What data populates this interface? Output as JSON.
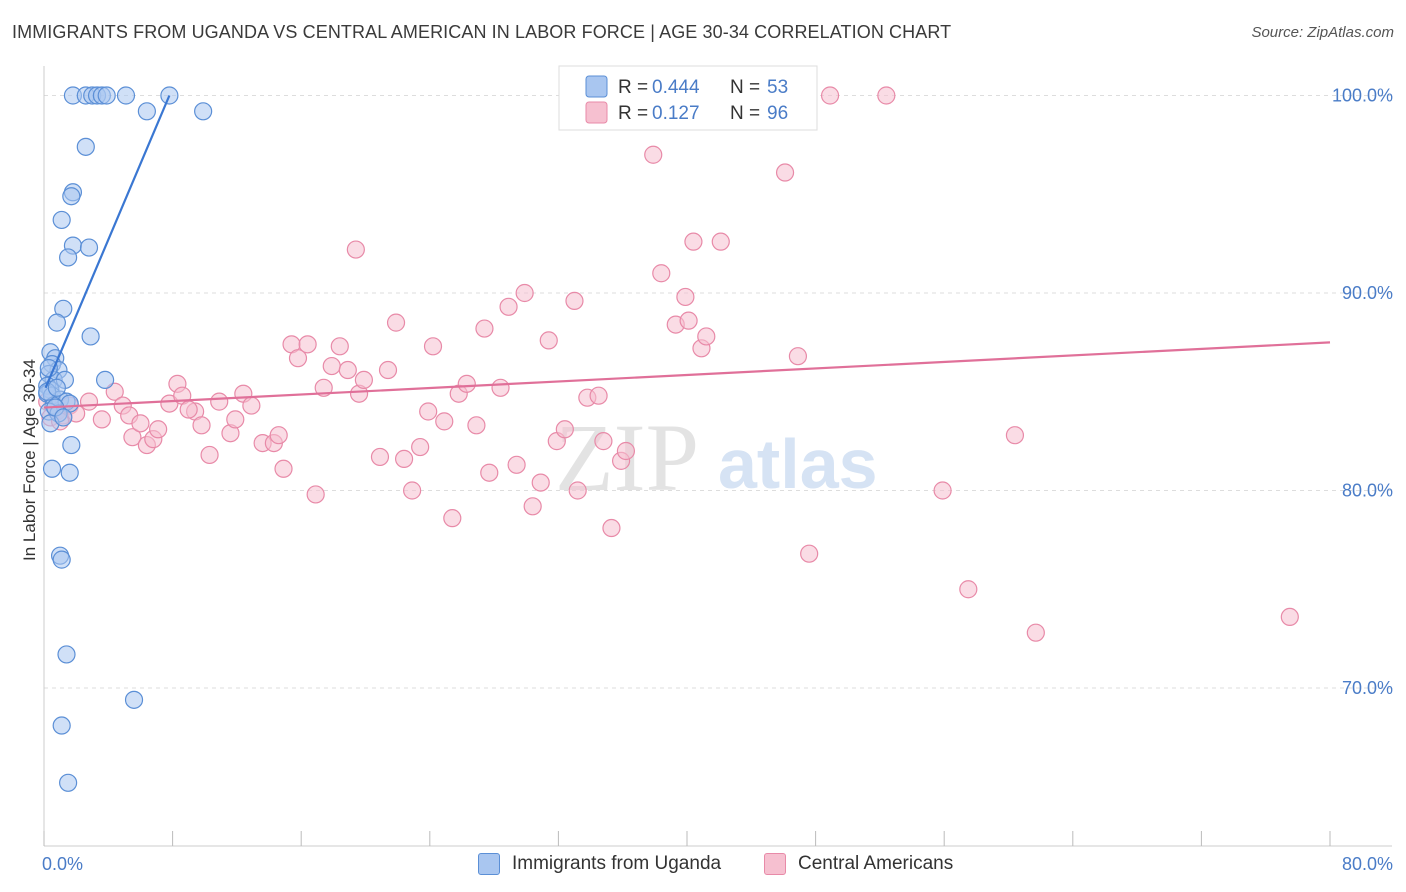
{
  "title": "IMMIGRANTS FROM UGANDA VS CENTRAL AMERICAN IN LABOR FORCE | AGE 30-34 CORRELATION CHART",
  "source": "Source: ZipAtlas.com",
  "watermark": {
    "zip": "ZIP",
    "atlas": "atlas"
  },
  "colors": {
    "blue_fill": "#a9c6f0",
    "blue_stroke": "#5b8fd6",
    "blue_line": "#3a77d2",
    "pink_fill": "#f6c0d0",
    "pink_stroke": "#e88aa8",
    "pink_line": "#e07099",
    "tick_label": "#4a7cc7",
    "grid": "#dddddd"
  },
  "chart_data": {
    "type": "scatter",
    "xlabel": "",
    "ylabel": "In Labor Force | Age 30-34",
    "xlim": [
      0,
      80
    ],
    "ylim": [
      62,
      102
    ],
    "x_tick_labels": [
      {
        "value": 0,
        "label": "0.0%"
      },
      {
        "value": 80,
        "label": "80.0%"
      }
    ],
    "y_ticks": [
      {
        "value": 70,
        "label": "70.0%"
      },
      {
        "value": 80,
        "label": "80.0%"
      },
      {
        "value": 90,
        "label": "90.0%"
      },
      {
        "value": 100,
        "label": "100.0%"
      }
    ],
    "legend": {
      "position": "top-center",
      "entries": [
        {
          "r_label": "R =",
          "r_value": "0.444",
          "n_label": "N =",
          "n_value": "53"
        },
        {
          "r_label": "R =",
          "r_value": "0.127",
          "n_label": "N =",
          "n_value": "96"
        }
      ]
    },
    "series": [
      {
        "name": "Immigrants from Uganda",
        "trend": {
          "x": [
            0.1,
            7.8
          ],
          "y": [
            85.2,
            100.0
          ]
        },
        "points": [
          [
            1.8,
            100
          ],
          [
            2.6,
            100
          ],
          [
            3.0,
            100
          ],
          [
            3.3,
            100
          ],
          [
            3.6,
            100
          ],
          [
            3.9,
            100
          ],
          [
            5.1,
            100
          ],
          [
            7.8,
            100
          ],
          [
            6.4,
            99.2
          ],
          [
            9.9,
            99.2
          ],
          [
            2.6,
            97.4
          ],
          [
            1.8,
            95.1
          ],
          [
            1.7,
            94.9
          ],
          [
            1.1,
            93.7
          ],
          [
            1.8,
            92.4
          ],
          [
            2.8,
            92.3
          ],
          [
            1.5,
            91.8
          ],
          [
            1.2,
            89.2
          ],
          [
            0.8,
            88.5
          ],
          [
            2.9,
            87.8
          ],
          [
            0.4,
            87.0
          ],
          [
            0.7,
            86.7
          ],
          [
            0.5,
            86.4
          ],
          [
            0.9,
            86.1
          ],
          [
            0.3,
            85.9
          ],
          [
            0.6,
            85.6
          ],
          [
            0.2,
            85.3
          ],
          [
            0.4,
            85.1
          ],
          [
            1.3,
            85.6
          ],
          [
            3.8,
            85.6
          ],
          [
            0.2,
            84.9
          ],
          [
            0.5,
            84.8
          ],
          [
            1.0,
            84.6
          ],
          [
            1.4,
            84.5
          ],
          [
            0.6,
            84.3
          ],
          [
            0.3,
            84.0
          ],
          [
            1.6,
            84.4
          ],
          [
            0.9,
            83.9
          ],
          [
            0.4,
            83.4
          ],
          [
            1.7,
            82.3
          ],
          [
            0.5,
            81.1
          ],
          [
            1.6,
            80.9
          ],
          [
            1.0,
            76.7
          ],
          [
            1.1,
            76.5
          ],
          [
            1.4,
            71.7
          ],
          [
            5.6,
            69.4
          ],
          [
            1.1,
            68.1
          ],
          [
            1.5,
            65.2
          ],
          [
            0.2,
            85.0
          ],
          [
            0.7,
            84.2
          ],
          [
            1.2,
            83.7
          ],
          [
            0.3,
            86.2
          ],
          [
            0.8,
            85.2
          ]
        ]
      },
      {
        "name": "Central Americans",
        "trend": {
          "x": [
            0.0,
            80.0
          ],
          "y": [
            84.2,
            87.5
          ]
        },
        "points": [
          [
            0.4,
            83.7
          ],
          [
            0.8,
            84.0
          ],
          [
            1.2,
            83.8
          ],
          [
            1.6,
            84.3
          ],
          [
            2.8,
            84.5
          ],
          [
            4.4,
            85.0
          ],
          [
            3.6,
            83.6
          ],
          [
            4.9,
            84.3
          ],
          [
            5.3,
            83.8
          ],
          [
            5.5,
            82.7
          ],
          [
            6.4,
            82.3
          ],
          [
            6.8,
            82.6
          ],
          [
            7.1,
            83.1
          ],
          [
            7.8,
            84.4
          ],
          [
            8.3,
            85.4
          ],
          [
            8.6,
            84.8
          ],
          [
            9.4,
            84.0
          ],
          [
            9.8,
            83.3
          ],
          [
            10.3,
            81.8
          ],
          [
            10.9,
            84.5
          ],
          [
            11.6,
            82.9
          ],
          [
            11.9,
            83.6
          ],
          [
            12.4,
            84.9
          ],
          [
            12.9,
            84.3
          ],
          [
            13.6,
            82.4
          ],
          [
            14.3,
            82.4
          ],
          [
            14.6,
            82.8
          ],
          [
            14.9,
            81.1
          ],
          [
            15.4,
            87.4
          ],
          [
            15.8,
            86.7
          ],
          [
            16.4,
            87.4
          ],
          [
            16.9,
            79.8
          ],
          [
            17.4,
            85.2
          ],
          [
            17.9,
            86.3
          ],
          [
            18.4,
            87.3
          ],
          [
            18.9,
            86.1
          ],
          [
            19.6,
            84.9
          ],
          [
            19.9,
            85.6
          ],
          [
            19.4,
            92.2
          ],
          [
            20.9,
            81.7
          ],
          [
            21.4,
            86.1
          ],
          [
            21.9,
            88.5
          ],
          [
            22.4,
            81.6
          ],
          [
            22.9,
            80.0
          ],
          [
            23.4,
            82.2
          ],
          [
            23.9,
            84.0
          ],
          [
            24.2,
            87.3
          ],
          [
            24.9,
            83.5
          ],
          [
            25.4,
            78.6
          ],
          [
            25.8,
            84.9
          ],
          [
            26.3,
            85.4
          ],
          [
            26.9,
            83.3
          ],
          [
            27.4,
            88.2
          ],
          [
            27.7,
            80.9
          ],
          [
            28.4,
            85.2
          ],
          [
            28.9,
            89.3
          ],
          [
            29.4,
            81.3
          ],
          [
            29.9,
            90.0
          ],
          [
            30.4,
            79.2
          ],
          [
            30.9,
            80.4
          ],
          [
            31.4,
            87.6
          ],
          [
            31.9,
            82.5
          ],
          [
            32.4,
            83.1
          ],
          [
            33.0,
            89.6
          ],
          [
            33.2,
            80.0
          ],
          [
            33.8,
            84.7
          ],
          [
            34.5,
            84.8
          ],
          [
            34.8,
            82.5
          ],
          [
            35.3,
            78.1
          ],
          [
            35.9,
            81.5
          ],
          [
            36.2,
            82.0
          ],
          [
            37.9,
            97.0
          ],
          [
            38.4,
            91.0
          ],
          [
            39.3,
            88.4
          ],
          [
            39.9,
            89.8
          ],
          [
            40.1,
            88.6
          ],
          [
            40.4,
            92.6
          ],
          [
            40.9,
            87.2
          ],
          [
            41.2,
            87.8
          ],
          [
            42.1,
            92.6
          ],
          [
            43.7,
            100
          ],
          [
            46.1,
            96.1
          ],
          [
            46.9,
            86.8
          ],
          [
            47.6,
            76.8
          ],
          [
            48.9,
            100
          ],
          [
            52.4,
            100
          ],
          [
            55.9,
            80.0
          ],
          [
            57.5,
            75.0
          ],
          [
            60.4,
            82.8
          ],
          [
            61.7,
            72.8
          ],
          [
            77.5,
            73.6
          ],
          [
            0.2,
            84.5
          ],
          [
            1.0,
            83.5
          ],
          [
            2.0,
            83.9
          ],
          [
            6.0,
            83.4
          ],
          [
            9.0,
            84.1
          ]
        ]
      }
    ]
  }
}
